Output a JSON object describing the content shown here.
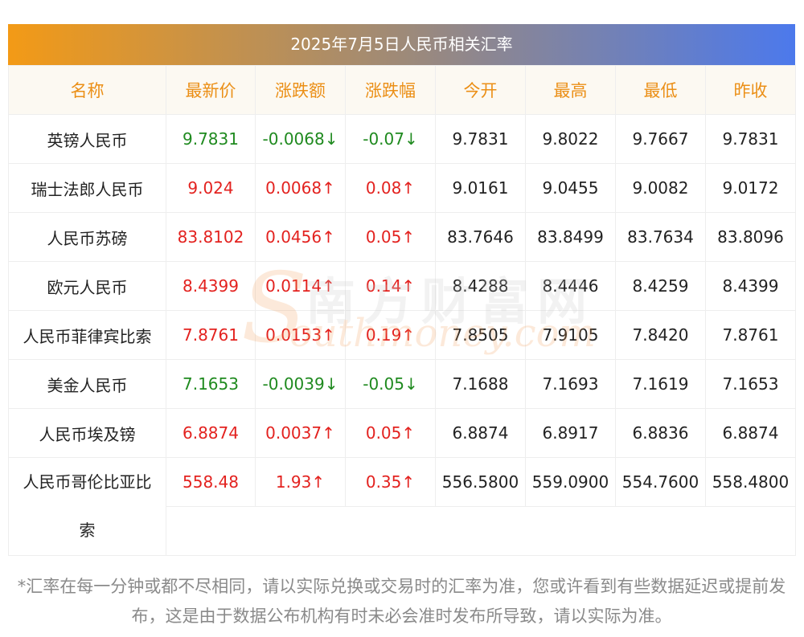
{
  "title": "2025年7月5日人民币相关汇率",
  "headers": [
    "名称",
    "最新价",
    "涨跌额",
    "涨跌幅",
    "今开",
    "最高",
    "最低",
    "昨收"
  ],
  "rows": [
    {
      "name": "英镑人民币",
      "latest": "9.7831",
      "change": "-0.0068↓",
      "pct": "-0.07↓",
      "open": "9.7831",
      "high": "9.8022",
      "low": "9.7667",
      "prev": "9.7831",
      "trend": "down"
    },
    {
      "name": "瑞士法郎人民币",
      "latest": "9.024",
      "change": "0.0068↑",
      "pct": "0.08↑",
      "open": "9.0161",
      "high": "9.0455",
      "low": "9.0082",
      "prev": "9.0172",
      "trend": "up"
    },
    {
      "name": "人民币苏磅",
      "latest": "83.8102",
      "change": "0.0456↑",
      "pct": "0.05↑",
      "open": "83.7646",
      "high": "83.8499",
      "low": "83.7634",
      "prev": "83.8096",
      "trend": "up"
    },
    {
      "name": "欧元人民币",
      "latest": "8.4399",
      "change": "0.0114↑",
      "pct": "0.14↑",
      "open": "8.4288",
      "high": "8.4446",
      "low": "8.4259",
      "prev": "8.4399",
      "trend": "up"
    },
    {
      "name": "人民币菲律宾比索",
      "latest": "7.8761",
      "change": "0.0153↑",
      "pct": "0.19↑",
      "open": "7.8505",
      "high": "7.9105",
      "low": "7.8420",
      "prev": "7.8761",
      "trend": "up"
    },
    {
      "name": "美金人民币",
      "latest": "7.1653",
      "change": "-0.0039↓",
      "pct": "-0.05↓",
      "open": "7.1688",
      "high": "7.1693",
      "low": "7.1619",
      "prev": "7.1653",
      "trend": "down"
    },
    {
      "name": "人民币埃及镑",
      "latest": "6.8874",
      "change": "0.0037↑",
      "pct": "0.05↑",
      "open": "6.8874",
      "high": "6.8917",
      "low": "6.8836",
      "prev": "6.8874",
      "trend": "up"
    },
    {
      "name": "人民币哥伦比亚比索",
      "latest": "558.48",
      "change": "1.93↑",
      "pct": "0.35↑",
      "open": "556.5800",
      "high": "559.0900",
      "low": "554.7600",
      "prev": "558.4800",
      "trend": "up"
    }
  ],
  "watermark": {
    "cn": "南方财富网",
    "en": "outhmoney.com",
    "s": "S"
  },
  "note": "*汇率在每一分钟或都不尽相同，请以实际兑换或交易时的汇率为准，您或许看到有些数据延迟或提前发布，这是由于数据公布机构有时未必会准时发布所导致，请以实际为准。",
  "colors": {
    "up": "#e3221f",
    "down": "#1f8a1f",
    "header_text": "#eb8f16",
    "gradient_start": "#f39a16",
    "gradient_end": "#4c79ec"
  }
}
